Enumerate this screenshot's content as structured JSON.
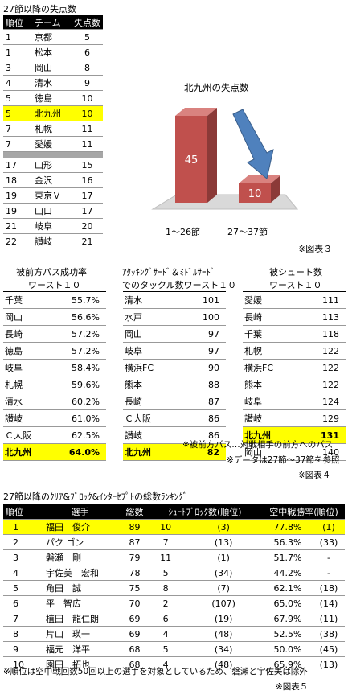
{
  "section1": {
    "title": "27節以降の失点数",
    "headers": [
      "順位",
      "チーム",
      "失点数"
    ],
    "rows_top": [
      [
        "1",
        "京都",
        "5"
      ],
      [
        "1",
        "松本",
        "6"
      ],
      [
        "3",
        "岡山",
        "8"
      ],
      [
        "4",
        "清水",
        "9"
      ],
      [
        "5",
        "徳島",
        "10"
      ],
      [
        "5",
        "北九州",
        "10"
      ],
      [
        "7",
        "札幌",
        "11"
      ],
      [
        "7",
        "愛媛",
        "11"
      ]
    ],
    "rows_bottom": [
      [
        "17",
        "山形",
        "15"
      ],
      [
        "18",
        "金沢",
        "16"
      ],
      [
        "19",
        "東京Ｖ",
        "17"
      ],
      [
        "19",
        "山口",
        "17"
      ],
      [
        "21",
        "岐阜",
        "20"
      ],
      [
        "22",
        "讃岐",
        "21"
      ]
    ],
    "highlight_row": 5,
    "highlight_color": "#ffff00"
  },
  "chart_data": {
    "type": "bar",
    "title": "北九州の失点数",
    "categories": [
      "1〜26節",
      "27〜37節"
    ],
    "values": [
      45,
      10
    ],
    "bar_color": "#c0504d",
    "arrow_color": "#4f81bd"
  },
  "figure3_label": "※図表３",
  "section4": {
    "columns": [
      {
        "title_lines": [
          "被前方パス成功率",
          "ワースト１０"
        ],
        "rows": [
          [
            "千葉",
            "55.7%"
          ],
          [
            "岡山",
            "56.6%"
          ],
          [
            "長崎",
            "57.2%"
          ],
          [
            "徳島",
            "57.2%"
          ],
          [
            "岐阜",
            "58.4%"
          ],
          [
            "札幌",
            "59.6%"
          ],
          [
            "清水",
            "60.2%"
          ],
          [
            "讃岐",
            "61.0%"
          ],
          [
            "Ｃ大阪",
            "62.5%"
          ]
        ],
        "highlight": [
          "北九州",
          "64.0%"
        ]
      },
      {
        "title_lines": [
          "ｱﾀｯｷﾝｸﾞｻｰﾄﾞ＆ﾐﾄﾞﾙｻｰﾄﾞ",
          "でのタックル数ワースト１０"
        ],
        "rows": [
          [
            "清水",
            "101"
          ],
          [
            "水戸",
            "100"
          ],
          [
            "岡山",
            "97"
          ],
          [
            "岐阜",
            "97"
          ],
          [
            "横浜FC",
            "90"
          ],
          [
            "熊本",
            "88"
          ],
          [
            "長崎",
            "87"
          ],
          [
            "Ｃ大阪",
            "86"
          ],
          [
            "讃岐",
            "86"
          ]
        ],
        "highlight": [
          "北九州",
          "82"
        ]
      },
      {
        "title_lines": [
          "被シュート数",
          "ワースト１０"
        ],
        "rows": [
          [
            "愛媛",
            "111"
          ],
          [
            "長崎",
            "113"
          ],
          [
            "千葉",
            "118"
          ],
          [
            "札幌",
            "122"
          ],
          [
            "横浜FC",
            "122"
          ],
          [
            "熊本",
            "122"
          ],
          [
            "岐阜",
            "124"
          ],
          [
            "讃岐",
            "129"
          ]
        ],
        "highlight": [
          "北九州",
          "131"
        ],
        "after": [
          "岡山",
          "140"
        ]
      }
    ],
    "note1": "※被前方パス…対戦相手の前方へのパス",
    "note2": "※データは27節〜37節を参照",
    "figure_label": "※図表４"
  },
  "section5": {
    "title": "27節以降のｸﾘｱ&ﾌﾞﾛｯｸ&ｲﾝﾀｰｾﾌﾟﾄの総数ﾗﾝｷﾝｸﾞ",
    "headers": [
      "順位",
      "選手",
      "総数",
      "ｼｭｰﾄﾌﾞﾛｯｸ数(順位)",
      "空中戦勝率(順位)"
    ],
    "rows": [
      [
        "1",
        "福田　俊介",
        "89",
        "10",
        "(3)",
        "77.8%",
        "(1)"
      ],
      [
        "2",
        "パク ゴン",
        "87",
        "7",
        "(13)",
        "56.3%",
        "(33)"
      ],
      [
        "3",
        "磐瀬　剛",
        "79",
        "11",
        "(1)",
        "51.7%",
        "-"
      ],
      [
        "4",
        "宇佐美　宏和",
        "78",
        "5",
        "(34)",
        "44.2%",
        "-"
      ],
      [
        "5",
        "角田　誠",
        "75",
        "8",
        "(7)",
        "62.1%",
        "(18)"
      ],
      [
        "6",
        "平　智広",
        "70",
        "2",
        "(107)",
        "65.0%",
        "(14)"
      ],
      [
        "7",
        "植田　龍仁朗",
        "69",
        "6",
        "(19)",
        "67.9%",
        "(11)"
      ],
      [
        "8",
        "片山　瑛一",
        "69",
        "4",
        "(48)",
        "52.5%",
        "(38)"
      ],
      [
        "9",
        "福元　洋平",
        "68",
        "5",
        "(34)",
        "50.0%",
        "(45)"
      ],
      [
        "10",
        "園田　拓也",
        "68",
        "4",
        "(48)",
        "65.9%",
        "(13)"
      ]
    ],
    "note": "※順位は空中戦回数50回以上の選手を対象としているため、磐瀬と宇佐美は除外",
    "figure_label": "※図表５"
  }
}
